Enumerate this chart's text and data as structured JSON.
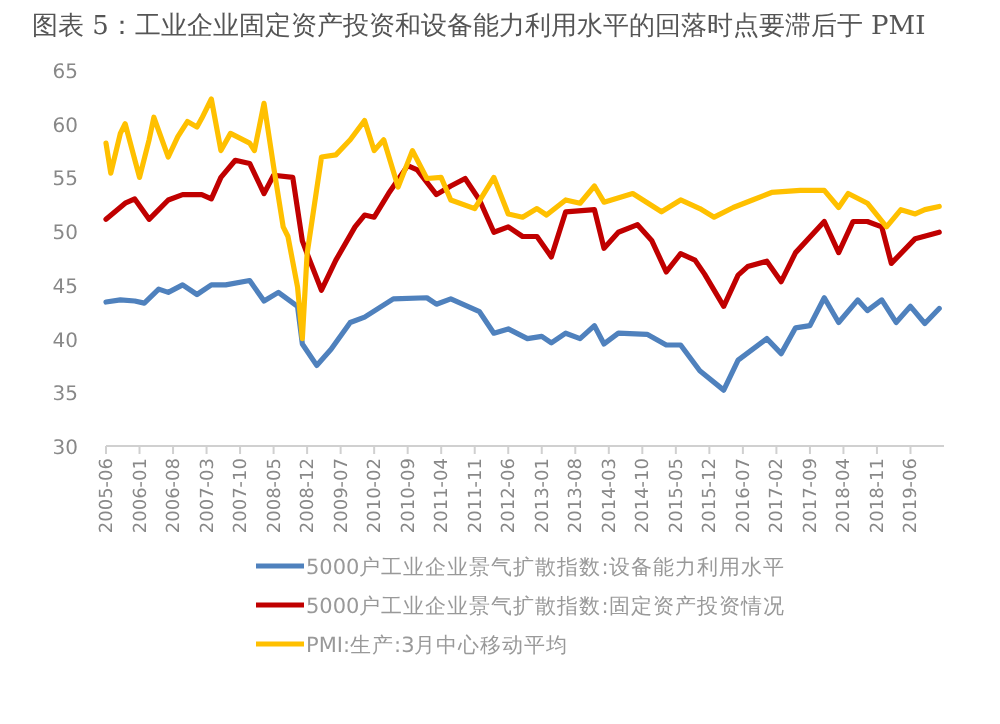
{
  "chart_data": {
    "type": "line",
    "title": "图表 5：工业企业固定资产投资和设备能力利用水平的回落时点要滞后于 PMI",
    "xlim": [
      "2005-06",
      "2020-01"
    ],
    "xticks": [
      "2005-06",
      "2006-01",
      "2006-08",
      "2007-03",
      "2007-10",
      "2008-05",
      "2008-12",
      "2009-07",
      "2010-02",
      "2010-09",
      "2011-04",
      "2011-11",
      "2012-06",
      "2013-01",
      "2013-08",
      "2014-03",
      "2014-10",
      "2015-05",
      "2015-12",
      "2016-07",
      "2017-02",
      "2017-09",
      "2018-04",
      "2018-11",
      "2019-06"
    ],
    "ylim": [
      30,
      65
    ],
    "yticks": [
      30,
      35,
      40,
      45,
      50,
      55,
      60,
      65
    ],
    "grid": false,
    "legend": "bottom",
    "marker": "none",
    "line_style": "solid",
    "series": [
      {
        "name": "5000户工业企业景气扩散指数:设备能力利用水平",
        "color": "#4f81bd",
        "x": [
          "2005-06",
          "2005-09",
          "2005-12",
          "2006-02",
          "2006-05",
          "2006-07",
          "2006-10",
          "2007-01",
          "2007-04",
          "2007-07",
          "2007-12",
          "2008-03",
          "2008-06",
          "2008-10",
          "2008-11",
          "2009-02",
          "2009-05",
          "2009-09",
          "2009-12",
          "2010-06",
          "2011-01",
          "2011-03",
          "2011-06",
          "2011-12",
          "2012-03",
          "2012-06",
          "2012-10",
          "2013-01",
          "2013-03",
          "2013-06",
          "2013-09",
          "2013-12",
          "2014-02",
          "2014-05",
          "2014-11",
          "2015-03",
          "2015-06",
          "2015-10",
          "2016-03",
          "2016-06",
          "2016-12",
          "2017-03",
          "2017-06",
          "2017-09",
          "2017-12",
          "2018-03",
          "2018-07",
          "2018-09",
          "2018-12",
          "2019-03",
          "2019-06",
          "2019-09",
          "2019-12"
        ],
        "values": [
          43.4,
          43.6,
          43.5,
          43.3,
          44.6,
          44.3,
          45.0,
          44.1,
          45.0,
          45.0,
          45.4,
          43.5,
          44.3,
          43.0,
          39.5,
          37.5,
          39.0,
          41.5,
          42.0,
          43.7,
          43.8,
          43.2,
          43.7,
          42.5,
          40.5,
          40.9,
          40.0,
          40.2,
          39.6,
          40.5,
          40.0,
          41.2,
          39.5,
          40.5,
          40.4,
          39.4,
          39.4,
          37.0,
          35.2,
          38.0,
          40.0,
          38.6,
          41.0,
          41.2,
          43.8,
          41.5,
          43.6,
          42.6,
          43.6,
          41.5,
          43.0,
          41.4,
          42.8
        ]
      },
      {
        "name": "5000户工业企业景气扩散指数:固定资产投资情况",
        "color": "#c00000",
        "x": [
          "2005-06",
          "2005-10",
          "2005-12",
          "2006-03",
          "2006-07",
          "2006-10",
          "2007-02",
          "2007-04",
          "2007-06",
          "2007-09",
          "2007-12",
          "2008-03",
          "2008-05",
          "2008-09",
          "2008-11",
          "2008-12",
          "2009-03",
          "2009-06",
          "2009-10",
          "2009-12",
          "2010-02",
          "2010-05",
          "2010-09",
          "2010-11",
          "2011-03",
          "2011-06",
          "2011-09",
          "2011-12",
          "2012-03",
          "2012-06",
          "2012-09",
          "2012-12",
          "2013-03",
          "2013-06",
          "2013-12",
          "2014-02",
          "2014-05",
          "2014-09",
          "2014-12",
          "2015-03",
          "2015-06",
          "2015-09",
          "2015-11",
          "2016-03",
          "2016-06",
          "2016-08",
          "2016-12",
          "2017-03",
          "2017-06",
          "2017-12",
          "2018-03",
          "2018-06",
          "2018-09",
          "2018-12",
          "2019-02",
          "2019-07",
          "2019-12"
        ],
        "values": [
          51.1,
          52.6,
          53.0,
          51.1,
          52.9,
          53.4,
          53.4,
          53.0,
          55.0,
          56.6,
          56.3,
          53.5,
          55.2,
          55.0,
          49.1,
          47.9,
          44.5,
          47.3,
          50.4,
          51.5,
          51.3,
          53.5,
          56.1,
          55.7,
          53.4,
          54.2,
          54.9,
          52.9,
          49.9,
          50.4,
          49.5,
          49.5,
          47.6,
          51.8,
          52.0,
          48.4,
          49.9,
          50.6,
          49.1,
          46.2,
          47.9,
          47.3,
          46.0,
          43.0,
          45.9,
          46.7,
          47.2,
          45.3,
          48.0,
          50.9,
          48.0,
          50.9,
          50.9,
          50.4,
          47.0,
          49.3,
          49.9
        ]
      },
      {
        "name": "PMI:生产:3月中心移动平均",
        "color": "#ffc000",
        "x": [
          "2005-06",
          "2005-07",
          "2005-09",
          "2005-10",
          "2006-01",
          "2006-03",
          "2006-04",
          "2006-07",
          "2006-09",
          "2006-11",
          "2007-01",
          "2007-02",
          "2007-04",
          "2007-06",
          "2007-08",
          "2007-12",
          "2008-01",
          "2008-03",
          "2008-05",
          "2008-07",
          "2008-08",
          "2008-10",
          "2008-11",
          "2008-12",
          "2009-03",
          "2009-06",
          "2009-09",
          "2009-12",
          "2010-02",
          "2010-04",
          "2010-07",
          "2010-10",
          "2011-01",
          "2011-04",
          "2011-06",
          "2011-11",
          "2012-03",
          "2012-06",
          "2012-09",
          "2012-12",
          "2013-02",
          "2013-06",
          "2013-09",
          "2013-12",
          "2014-02",
          "2014-08",
          "2015-02",
          "2015-06",
          "2015-10",
          "2016-01",
          "2016-05",
          "2016-09",
          "2017-01",
          "2017-07",
          "2017-12",
          "2018-03",
          "2018-05",
          "2018-09",
          "2019-01",
          "2019-04",
          "2019-07",
          "2019-09",
          "2019-12"
        ],
        "values": [
          58.2,
          55.4,
          59.1,
          60.0,
          55.0,
          58.5,
          60.6,
          56.9,
          58.8,
          60.2,
          59.7,
          60.5,
          62.3,
          57.5,
          59.1,
          58.2,
          57.5,
          61.9,
          56.0,
          50.4,
          49.5,
          44.8,
          40.0,
          47.9,
          56.9,
          57.1,
          58.5,
          60.3,
          57.5,
          58.5,
          54.1,
          57.5,
          54.9,
          55.0,
          52.9,
          52.1,
          55.0,
          51.6,
          51.3,
          52.1,
          51.5,
          52.9,
          52.6,
          54.2,
          52.7,
          53.5,
          51.8,
          52.9,
          52.1,
          51.3,
          52.2,
          52.9,
          53.6,
          53.8,
          53.8,
          52.2,
          53.5,
          52.6,
          50.4,
          52.0,
          51.6,
          52.0,
          52.3
        ]
      }
    ]
  }
}
